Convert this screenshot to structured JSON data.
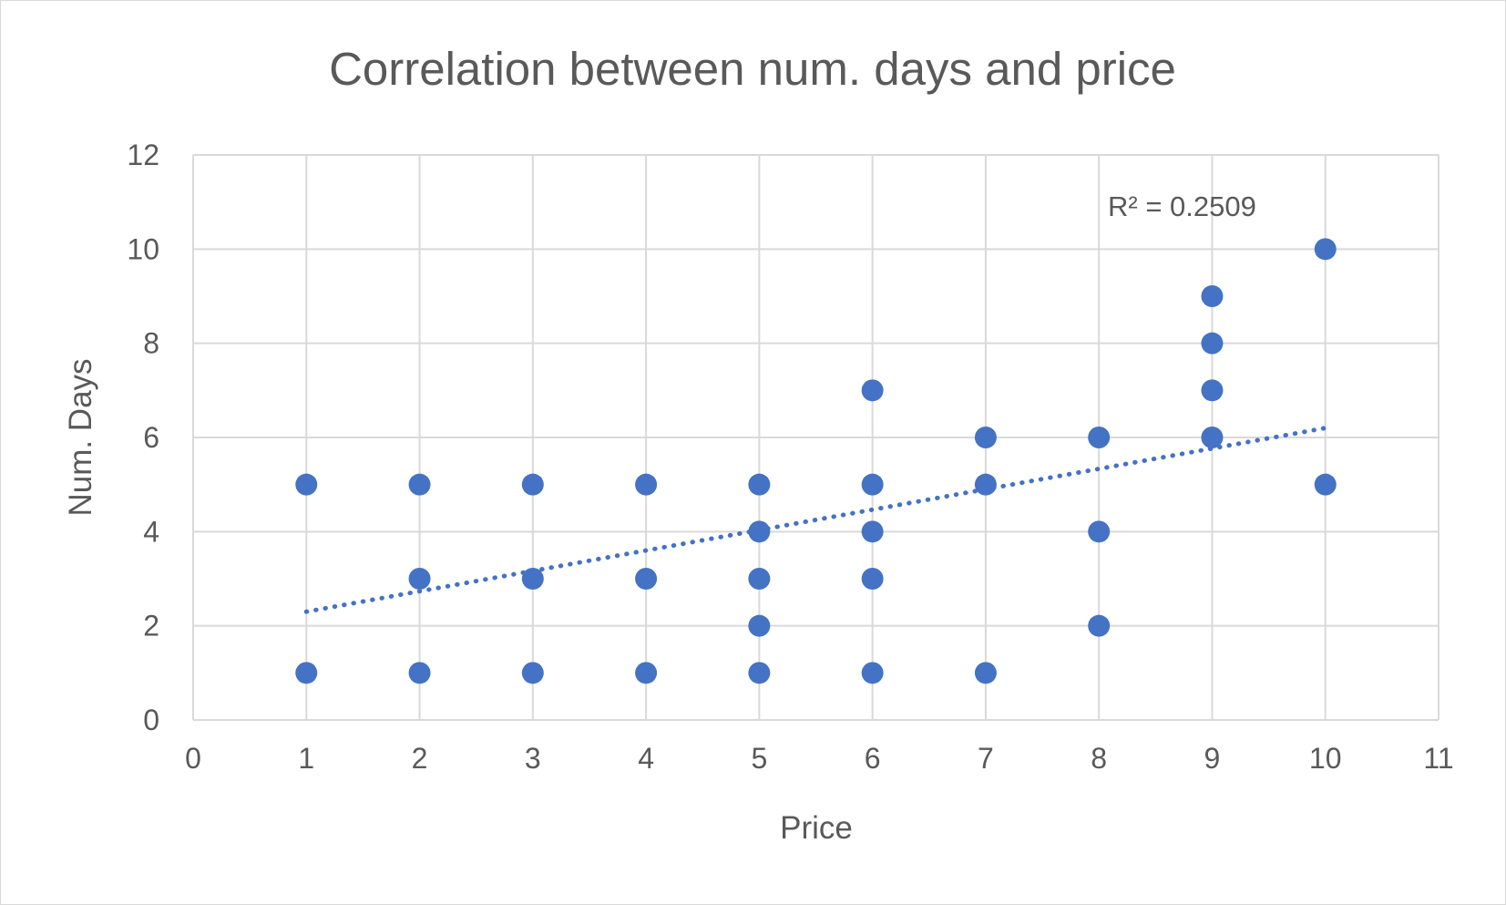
{
  "chart_data": {
    "type": "scatter",
    "title": "Correlation between num. days and price",
    "xlabel": "Price",
    "ylabel": "Num. Days",
    "xlim": [
      0,
      11
    ],
    "ylim": [
      0,
      12
    ],
    "x_ticks": [
      "0",
      "1",
      "2",
      "3",
      "4",
      "5",
      "6",
      "7",
      "8",
      "9",
      "10",
      "11"
    ],
    "y_ticks": [
      "0",
      "2",
      "4",
      "6",
      "8",
      "10",
      "12"
    ],
    "grid": true,
    "legend": "none",
    "points": [
      {
        "x": 1,
        "y": 5
      },
      {
        "x": 1,
        "y": 1
      },
      {
        "x": 2,
        "y": 5
      },
      {
        "x": 2,
        "y": 3
      },
      {
        "x": 2,
        "y": 1
      },
      {
        "x": 3,
        "y": 5
      },
      {
        "x": 3,
        "y": 3
      },
      {
        "x": 3,
        "y": 1
      },
      {
        "x": 4,
        "y": 5
      },
      {
        "x": 4,
        "y": 3
      },
      {
        "x": 4,
        "y": 1
      },
      {
        "x": 5,
        "y": 5
      },
      {
        "x": 5,
        "y": 4
      },
      {
        "x": 5,
        "y": 3
      },
      {
        "x": 5,
        "y": 2
      },
      {
        "x": 5,
        "y": 1
      },
      {
        "x": 6,
        "y": 7
      },
      {
        "x": 6,
        "y": 5
      },
      {
        "x": 6,
        "y": 4
      },
      {
        "x": 6,
        "y": 3
      },
      {
        "x": 6,
        "y": 1
      },
      {
        "x": 7,
        "y": 6
      },
      {
        "x": 7,
        "y": 5
      },
      {
        "x": 7,
        "y": 1
      },
      {
        "x": 8,
        "y": 6
      },
      {
        "x": 8,
        "y": 4
      },
      {
        "x": 8,
        "y": 2
      },
      {
        "x": 9,
        "y": 9
      },
      {
        "x": 9,
        "y": 8
      },
      {
        "x": 9,
        "y": 7
      },
      {
        "x": 9,
        "y": 6
      },
      {
        "x": 10,
        "y": 10
      },
      {
        "x": 10,
        "y": 5
      }
    ],
    "trendline": {
      "type": "linear",
      "x": [
        1,
        10
      ],
      "y": [
        2.3,
        6.2
      ],
      "style": "dotted",
      "r_squared_label": "R² = 0.2509"
    },
    "colors": {
      "marker": "#4472c4",
      "trendline": "#4472c4",
      "grid": "#d9d9d9",
      "text": "#595959"
    }
  }
}
